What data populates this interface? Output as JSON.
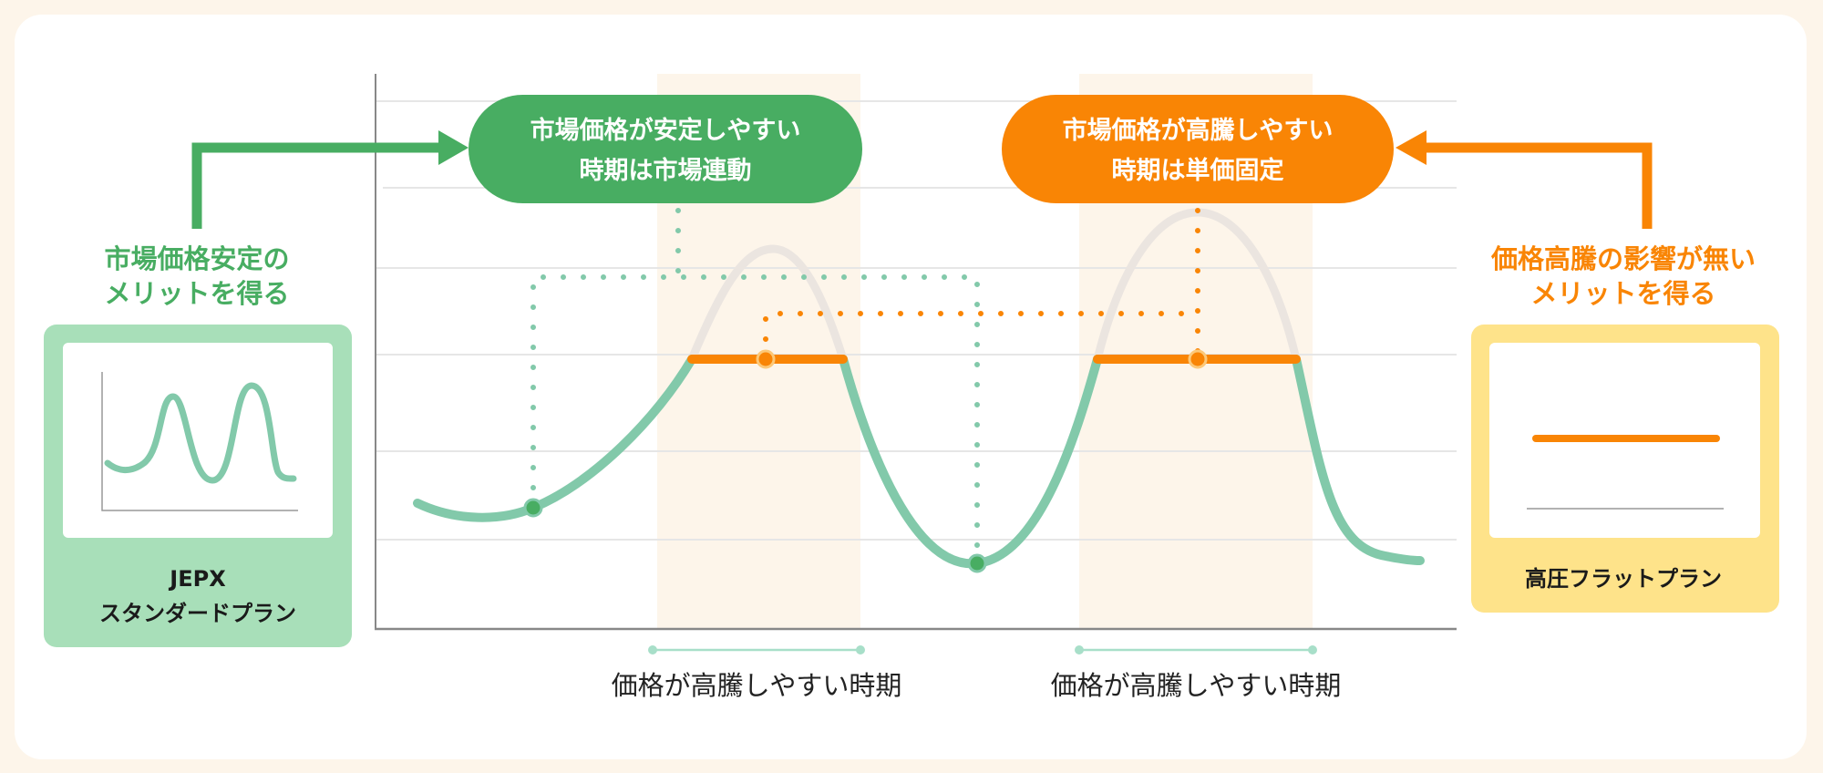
{
  "colors": {
    "green": "#48ad62",
    "curve_green": "#82c9aa",
    "light_green": "#a8dfb9",
    "orange": "#f98505",
    "yellow": "#fee38a",
    "band": "#fdf5ea",
    "gray_curve": "#ebe5e0"
  },
  "left_callout": {
    "line1": "市場価格が安定しやすい",
    "line2": "時期は市場連動"
  },
  "right_callout": {
    "line1": "市場価格が高騰しやすい",
    "line2": "時期は単価固定"
  },
  "left_benefit": {
    "line1": "市場価格安定の",
    "line2": "メリットを得る"
  },
  "right_benefit": {
    "line1": "価格高騰の影響が無い",
    "line2": "メリットを得る"
  },
  "left_plan": {
    "line1": "JEPX",
    "line2": "スタンダードプラン"
  },
  "right_plan": {
    "name": "高圧フラットプラン"
  },
  "periods": [
    {
      "label": "価格が高騰しやすい時期"
    },
    {
      "label": "価格が高騰しやすい時期"
    }
  ]
}
